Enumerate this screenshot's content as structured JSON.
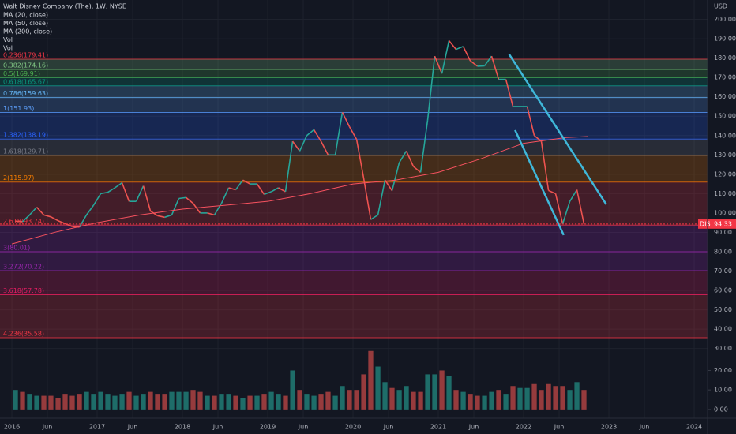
{
  "chart_data": {
    "type": "line",
    "title": "Walt Disney Company (The), 1W, NYSE",
    "indicators": [
      "MA (20, close)",
      "MA (50, close)",
      "MA (200, close)",
      "Vol",
      "Vol"
    ],
    "currency": "USD",
    "ticker": "DIS",
    "last_price": 94.33,
    "xlim": [
      2015.861,
      2024.157
    ],
    "ylim": [
      -6,
      210
    ],
    "y2lim": [
      -4.5,
      210
    ],
    "xticks": [
      2016,
      {
        "value": 2016.4167,
        "label": "Jun"
      },
      2017,
      {
        "value": 2017.4167,
        "label": "Jun"
      },
      2018,
      {
        "value": 2018.4167,
        "label": "Jun"
      },
      2019,
      {
        "value": 2019.4167,
        "label": "Jun"
      },
      2020,
      {
        "value": 2020.4167,
        "label": "Jun"
      },
      2021,
      {
        "value": 2021.4167,
        "label": "Jun"
      },
      2022,
      {
        "value": 2022.4167,
        "label": "Jun"
      },
      2023,
      {
        "value": 2023.4167,
        "label": "Jun"
      },
      2024
    ],
    "yticks": [
      {
        "value": 200,
        "label": "200.00"
      },
      {
        "value": 190,
        "label": "190.00"
      },
      {
        "value": 180,
        "label": "180.00"
      },
      {
        "value": 170,
        "label": "170.00"
      },
      {
        "value": 160,
        "label": "160.00"
      },
      {
        "value": 150,
        "label": "150.00"
      },
      {
        "value": 140,
        "label": "140.00"
      },
      {
        "value": 130,
        "label": "130.00"
      },
      {
        "value": 120,
        "label": "120.00"
      },
      {
        "value": 110,
        "label": "110.00"
      },
      {
        "value": 100,
        "label": "100.00"
      },
      {
        "value": 90,
        "label": "90.00"
      },
      {
        "value": 80,
        "label": "80.00"
      },
      {
        "value": 70,
        "label": "70.00"
      },
      {
        "value": 60,
        "label": "60.00"
      },
      {
        "value": 50,
        "label": "50.00"
      },
      {
        "value": 40,
        "label": "40.00"
      },
      {
        "value": 30,
        "label": "30.00"
      }
    ],
    "y2ticks": [
      {
        "value": 20,
        "label": "20.00"
      },
      {
        "value": 10,
        "label": "10.00"
      },
      {
        "value": 0,
        "label": "0.00"
      }
    ],
    "grid": true,
    "x": [
      2016.042,
      2016.125,
      2016.208,
      2016.292,
      2016.375,
      2016.458,
      2016.542,
      2016.625,
      2016.708,
      2016.792,
      2016.875,
      2016.958,
      2017.042,
      2017.125,
      2017.208,
      2017.292,
      2017.375,
      2017.458,
      2017.542,
      2017.625,
      2017.708,
      2017.792,
      2017.875,
      2017.958,
      2018.042,
      2018.125,
      2018.208,
      2018.292,
      2018.375,
      2018.458,
      2018.542,
      2018.625,
      2018.708,
      2018.792,
      2018.875,
      2018.958,
      2019.042,
      2019.125,
      2019.208,
      2019.292,
      2019.375,
      2019.458,
      2019.542,
      2019.625,
      2019.708,
      2019.792,
      2019.875,
      2019.958,
      2020.042,
      2020.125,
      2020.208,
      2020.292,
      2020.375,
      2020.458,
      2020.542,
      2020.625,
      2020.708,
      2020.792,
      2020.875,
      2020.958,
      2021.042,
      2021.125,
      2021.208,
      2021.292,
      2021.375,
      2021.458,
      2021.542,
      2021.625,
      2021.708,
      2021.792,
      2021.875,
      2021.958,
      2022.042,
      2022.125,
      2022.208,
      2022.292,
      2022.375,
      2022.458,
      2022.542,
      2022.625,
      2022.708
    ],
    "series": [
      {
        "name": "DIS",
        "color": "#26a69a",
        "down_color": "#ef5350",
        "values": [
          95.8,
          95.5,
          99,
          103,
          99,
          98,
          96,
          94.5,
          93,
          92.7,
          99,
          104,
          110,
          110.7,
          113,
          115.6,
          106,
          106,
          114,
          101,
          98.6,
          97.8,
          99,
          107.5,
          108,
          105,
          100,
          100,
          99,
          105,
          113,
          112,
          117,
          115,
          115,
          109.6,
          111,
          113,
          111,
          137,
          132,
          140,
          143,
          137,
          130,
          130,
          152,
          144.6,
          138,
          118,
          96.6,
          99,
          117,
          111.5,
          126,
          132,
          124,
          121,
          148,
          181,
          172,
          189,
          184.5,
          186,
          178.6,
          175.8,
          176,
          181,
          169,
          169,
          155,
          155,
          155,
          140,
          137,
          111.6,
          110,
          94.4,
          106,
          112,
          94.3
        ]
      },
      {
        "name": "Vol",
        "color": "#26a69a",
        "down_color": "#ef5350",
        "axis": "y2",
        "values": [
          10,
          9,
          8,
          7,
          7,
          7,
          6,
          8,
          7,
          8,
          9,
          8,
          9,
          8,
          7,
          8,
          9,
          7,
          8,
          9,
          8,
          8,
          9,
          9,
          9,
          10,
          9,
          7,
          7,
          8,
          8,
          7,
          6,
          7,
          7,
          8,
          9,
          8,
          7,
          20,
          10,
          8,
          7,
          8,
          9,
          7,
          12,
          10,
          10,
          18,
          30,
          22,
          14,
          11,
          10,
          12,
          9,
          9,
          18,
          18,
          20,
          17,
          10,
          9,
          8,
          7,
          7,
          9,
          10,
          8,
          12,
          11,
          11,
          13,
          10,
          13,
          12,
          12,
          10,
          14,
          10
        ]
      }
    ],
    "ma200": {
      "name": "MA (200, close)",
      "color": "#f7525f",
      "x": [
        2016.0,
        2016.5,
        2017.0,
        2017.5,
        2018.0,
        2018.5,
        2019.0,
        2019.5,
        2020.0,
        2020.5,
        2021.0,
        2021.5,
        2022.0,
        2022.5,
        2022.75
      ],
      "values": [
        84,
        90,
        95,
        99,
        102,
        104,
        106,
        110,
        115,
        117,
        121,
        128,
        136,
        139,
        139.5
      ]
    },
    "fib_levels": [
      {
        "label": "0.236(179.41)",
        "value": 179.41,
        "color": "#f23645"
      },
      {
        "label": "0.382(174.16)",
        "value": 174.16,
        "color": "#81c784"
      },
      {
        "label": "0.5(169.91)",
        "value": 169.91,
        "color": "#4caf50"
      },
      {
        "label": "0.618(165.67)",
        "value": 165.67,
        "color": "#089981"
      },
      {
        "label": "0.786(159.63)",
        "value": 159.63,
        "color": "#64b5f6"
      },
      {
        "label": "1(151.93)",
        "value": 151.93,
        "color": "#5b9cf6"
      },
      {
        "label": "1.382(138.19)",
        "value": 138.19,
        "color": "#2962ff"
      },
      {
        "label": "1.618(129.71)",
        "value": 129.71,
        "color": "#787b86"
      },
      {
        "label": "2(115.97)",
        "value": 115.97,
        "color": "#f57c00"
      },
      {
        "label": "2.618(93.74)",
        "value": 93.74,
        "color": "#f23645"
      },
      {
        "label": "3(80.01)",
        "value": 80.01,
        "color": "#9c27b0"
      },
      {
        "label": "3.272(70.22)",
        "value": 70.22,
        "color": "#9c27b0"
      },
      {
        "label": "3.618(57.78)",
        "value": 57.78,
        "color": "#e91e63"
      },
      {
        "label": "4.236(35.58)",
        "value": 35.58,
        "color": "#f23645"
      }
    ],
    "trendlines": [
      {
        "x": [
          2021.83,
          2022.97
        ],
        "values": [
          182,
          104.4
        ],
        "color": "#3fb7d9"
      },
      {
        "x": [
          2021.9,
          2022.47
        ],
        "values": [
          142.8,
          88.6
        ],
        "color": "#3fb7d9"
      }
    ]
  }
}
